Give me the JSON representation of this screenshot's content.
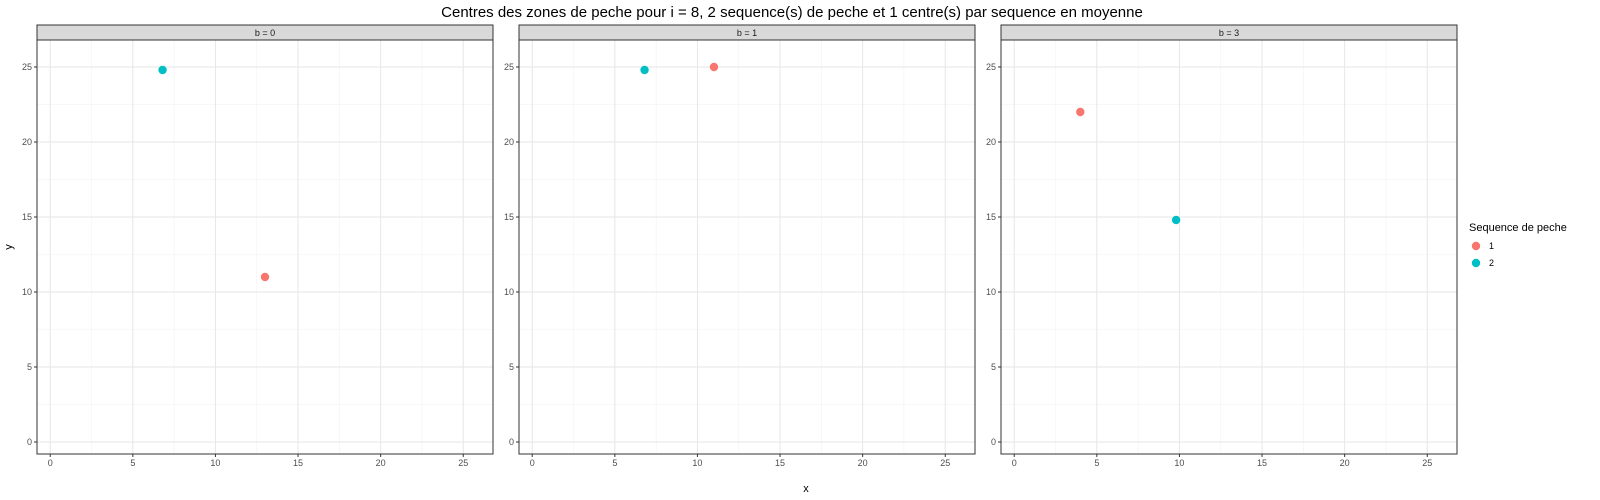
{
  "chart_data": {
    "type": "scatter",
    "title": "Centres des zones de peche pour i = 8, 2 sequence(s) de peche et 1 centre(s) par sequence en moyenne",
    "xlabel": "x",
    "ylabel": "y",
    "xlim": [
      -0.8,
      26.8
    ],
    "ylim": [
      -0.8,
      26.8
    ],
    "xticks": [
      0,
      5,
      10,
      15,
      20,
      25
    ],
    "yticks": [
      0,
      5,
      10,
      15,
      20,
      25
    ],
    "grid": true,
    "legend": {
      "title": "Sequence de peche",
      "placement": "right",
      "entries": [
        {
          "label": "1",
          "color": "#F8766D"
        },
        {
          "label": "2",
          "color": "#00BFC4"
        }
      ]
    },
    "panels": [
      {
        "label": "b = 0",
        "points": [
          {
            "x": 6.8,
            "y": 24.8,
            "series": "2"
          },
          {
            "x": 13.0,
            "y": 11.0,
            "series": "1"
          }
        ]
      },
      {
        "label": "b = 1",
        "points": [
          {
            "x": 6.8,
            "y": 24.8,
            "series": "2"
          },
          {
            "x": 11.0,
            "y": 25.0,
            "series": "1"
          }
        ]
      },
      {
        "label": "b = 3",
        "points": [
          {
            "x": 4.0,
            "y": 22.0,
            "series": "1"
          },
          {
            "x": 9.8,
            "y": 14.8,
            "series": "2"
          }
        ]
      }
    ]
  }
}
